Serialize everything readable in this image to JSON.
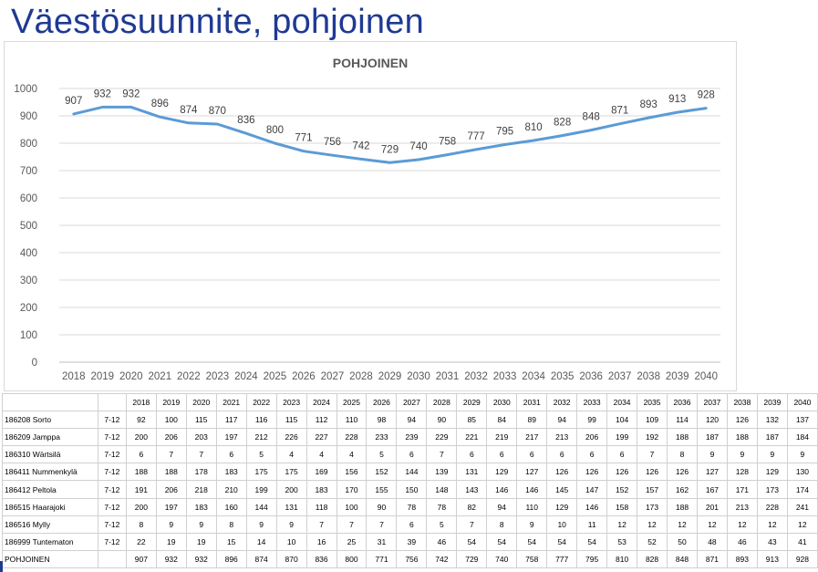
{
  "page": {
    "title": "Väestösuunnite, pohjoinen"
  },
  "chart_data": {
    "type": "line",
    "title": "POHJOINEN",
    "categories": [
      "2018",
      "2019",
      "2020",
      "2021",
      "2022",
      "2023",
      "2024",
      "2025",
      "2026",
      "2027",
      "2028",
      "2029",
      "2030",
      "2031",
      "2032",
      "2033",
      "2034",
      "2035",
      "2036",
      "2037",
      "2038",
      "2039",
      "2040"
    ],
    "series": [
      {
        "name": "",
        "values": [
          907,
          932,
          932,
          896,
          874,
          870,
          836,
          800,
          771,
          756,
          742,
          729,
          740,
          758,
          777,
          795,
          810,
          828,
          848,
          871,
          893,
          913,
          928
        ],
        "color": "#5b9bd5"
      }
    ],
    "ylim": [
      0,
      1000
    ],
    "yticks": [
      0,
      100,
      200,
      300,
      400,
      500,
      600,
      700,
      800,
      900,
      1000
    ],
    "xlabel": "",
    "ylabel": "",
    "grid": true,
    "data_labels": true
  },
  "table": {
    "header": [
      "",
      "",
      "2018",
      "2019",
      "2020",
      "2021",
      "2022",
      "2023",
      "2024",
      "2025",
      "2026",
      "2027",
      "2028",
      "2029",
      "2030",
      "2031",
      "2032",
      "2033",
      "2034",
      "2035",
      "2036",
      "2037",
      "2038",
      "2039",
      "2040"
    ],
    "rows": [
      {
        "name": "186208 Sorto",
        "grade": "7-12",
        "values": [
          "92",
          "100",
          "115",
          "117",
          "116",
          "115",
          "112",
          "110",
          "98",
          "94",
          "90",
          "85",
          "84",
          "89",
          "94",
          "99",
          "104",
          "109",
          "114",
          "120",
          "126",
          "132",
          "137"
        ]
      },
      {
        "name": "186209 Jamppa",
        "grade": "7-12",
        "values": [
          "200",
          "206",
          "203",
          "197",
          "212",
          "226",
          "227",
          "228",
          "233",
          "239",
          "229",
          "221",
          "219",
          "217",
          "213",
          "206",
          "199",
          "192",
          "188",
          "187",
          "188",
          "187",
          "184"
        ]
      },
      {
        "name": "186310 Wärtsilä",
        "grade": "7-12",
        "values": [
          "6",
          "7",
          "7",
          "6",
          "5",
          "4",
          "4",
          "4",
          "5",
          "6",
          "7",
          "6",
          "6",
          "6",
          "6",
          "6",
          "6",
          "7",
          "8",
          "9",
          "9",
          "9",
          "9"
        ]
      },
      {
        "name": "186411 Nummenkylä",
        "grade": "7-12",
        "values": [
          "188",
          "188",
          "178",
          "183",
          "175",
          "175",
          "169",
          "156",
          "152",
          "144",
          "139",
          "131",
          "129",
          "127",
          "126",
          "126",
          "126",
          "126",
          "126",
          "127",
          "128",
          "129",
          "130"
        ]
      },
      {
        "name": "186412 Peltola",
        "grade": "7-12",
        "values": [
          "191",
          "206",
          "218",
          "210",
          "199",
          "200",
          "183",
          "170",
          "155",
          "150",
          "148",
          "143",
          "146",
          "146",
          "145",
          "147",
          "152",
          "157",
          "162",
          "167",
          "171",
          "173",
          "174"
        ]
      },
      {
        "name": "186515 Haarajoki",
        "grade": "7-12",
        "values": [
          "200",
          "197",
          "183",
          "160",
          "144",
          "131",
          "118",
          "100",
          "90",
          "78",
          "78",
          "82",
          "94",
          "110",
          "129",
          "146",
          "158",
          "173",
          "188",
          "201",
          "213",
          "228",
          "241"
        ]
      },
      {
        "name": "186516 Mylly",
        "grade": "7-12",
        "values": [
          "8",
          "9",
          "9",
          "8",
          "9",
          "9",
          "7",
          "7",
          "7",
          "6",
          "5",
          "7",
          "8",
          "9",
          "10",
          "11",
          "12",
          "12",
          "12",
          "12",
          "12",
          "12",
          "12"
        ]
      },
      {
        "name": "186999 Tuntematon",
        "grade": "7-12",
        "values": [
          "22",
          "19",
          "19",
          "15",
          "14",
          "10",
          "16",
          "25",
          "31",
          "39",
          "46",
          "54",
          "54",
          "54",
          "54",
          "54",
          "53",
          "52",
          "50",
          "48",
          "46",
          "43",
          "41"
        ]
      },
      {
        "name": "POHJOINEN",
        "grade": "",
        "values": [
          "907",
          "932",
          "932",
          "896",
          "874",
          "870",
          "836",
          "800",
          "771",
          "756",
          "742",
          "729",
          "740",
          "758",
          "777",
          "795",
          "810",
          "828",
          "848",
          "871",
          "893",
          "913",
          "928"
        ]
      }
    ]
  }
}
